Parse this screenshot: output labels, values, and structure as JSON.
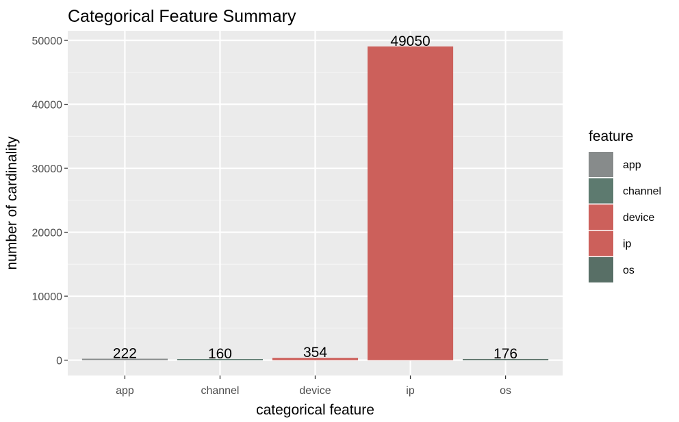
{
  "chart_data": {
    "type": "bar",
    "title": "Categorical Feature Summary",
    "xlabel": "categorical feature",
    "ylabel": "number of cardinality",
    "categories": [
      "app",
      "channel",
      "device",
      "ip",
      "os"
    ],
    "values": [
      222,
      160,
      354,
      49050,
      176
    ],
    "data_labels": [
      "222",
      "160",
      "354",
      "49050",
      "176"
    ],
    "ylim": [
      -2400,
      51500
    ],
    "yticks": [
      0,
      10000,
      20000,
      30000,
      40000,
      50000
    ],
    "ytick_labels": [
      "0",
      "10000",
      "20000",
      "30000",
      "40000",
      "50000"
    ],
    "grid": true,
    "legend": {
      "title": "feature",
      "position": "right",
      "entries": [
        "app",
        "channel",
        "device",
        "ip",
        "os"
      ]
    },
    "colors": {
      "app": "#878b8b",
      "channel": "#5d7a6f",
      "device": "#cc605b",
      "ip": "#cc605b",
      "os": "#586f66",
      "panel_background": "#ebebeb",
      "grid_major": "#ffffff",
      "grid_minor": "#f5f5f5"
    }
  }
}
